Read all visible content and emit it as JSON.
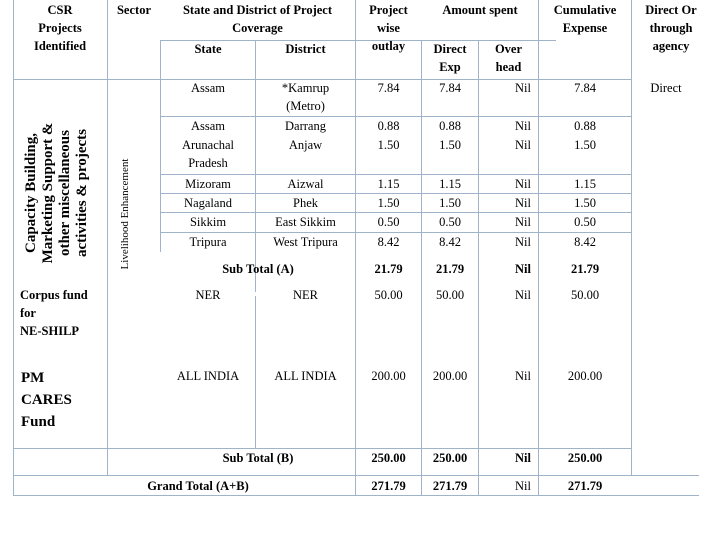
{
  "header": {
    "csr_projects": [
      "CSR",
      "Projects",
      "Identified"
    ],
    "sector": "Sector",
    "coverage": [
      "State and District of Project",
      "Coverage"
    ],
    "state": "State",
    "district": "District",
    "outlay": [
      "Project",
      "wise",
      "outlay"
    ],
    "amount_spent": "Amount spent",
    "direct_exp": [
      "Direct",
      "Exp"
    ],
    "overhead": [
      "Over",
      "head"
    ],
    "cumulative": [
      "Cumulative",
      "Expense"
    ],
    "direct_or_agency": [
      "Direct Or",
      "through",
      "agency"
    ]
  },
  "project_label": [
    "Capacity Building,",
    "Marketing Support &",
    "other miscellaneous",
    "activities & projects"
  ],
  "sector_label": "Livelihood Enhancement",
  "rows": [
    {
      "state": [
        "Assam"
      ],
      "district": [
        "*Kamrup",
        "(Metro)"
      ],
      "outlay": "7.84",
      "direct": "7.84",
      "overhead": "Nil",
      "cumulative": "7.84",
      "agency": "Direct"
    },
    {
      "state": [
        "Assam"
      ],
      "district": [
        "Darrang"
      ],
      "outlay": "0.88",
      "direct": "0.88",
      "overhead": "Nil",
      "cumulative": "0.88",
      "agency": ""
    },
    {
      "state": [
        "Arunachal",
        "Pradesh"
      ],
      "district": [
        "Anjaw"
      ],
      "outlay": "1.50",
      "direct": "1.50",
      "overhead": "Nil",
      "cumulative": "1.50",
      "agency": ""
    },
    {
      "state": [
        "Mizoram"
      ],
      "district": [
        "Aizwal"
      ],
      "outlay": "1.15",
      "direct": "1.15",
      "overhead": "Nil",
      "cumulative": "1.15",
      "agency": ""
    },
    {
      "state": [
        "Nagaland"
      ],
      "district": [
        "Phek"
      ],
      "outlay": "1.50",
      "direct": "1.50",
      "overhead": "Nil",
      "cumulative": "1.50",
      "agency": ""
    },
    {
      "state": [
        "Sikkim"
      ],
      "district": [
        "East Sikkim"
      ],
      "outlay": "0.50",
      "direct": "0.50",
      "overhead": "Nil",
      "cumulative": "0.50",
      "agency": ""
    },
    {
      "state": [
        "Tripura"
      ],
      "district": [
        "West Tripura"
      ],
      "outlay": "8.42",
      "direct": "8.42",
      "overhead": "Nil",
      "cumulative": "8.42",
      "agency": ""
    }
  ],
  "subtotal_a": {
    "label": "Sub Total (A)",
    "outlay": "21.79",
    "direct": "21.79",
    "overhead": "Nil",
    "cumulative": "21.79"
  },
  "corpus": {
    "label": [
      "Corpus fund",
      "for",
      "NE-SHILP"
    ],
    "state": "NER",
    "district": "NER",
    "outlay": "50.00",
    "direct": "50.00",
    "overhead": "Nil",
    "cumulative": "50.00"
  },
  "pmcares": {
    "label": [
      "PM",
      "CARES",
      "Fund"
    ],
    "state": "ALL INDIA",
    "district": "ALL INDIA",
    "outlay": "200.00",
    "direct": "200.00",
    "overhead": "Nil",
    "cumulative": "200.00"
  },
  "subtotal_b": {
    "label": "Sub Total (B)",
    "outlay": "250.00",
    "direct": "250.00",
    "overhead": "Nil",
    "cumulative": "250.00"
  },
  "grand_total": {
    "label": "Grand Total (A+B)",
    "outlay": "271.79",
    "direct": "271.79",
    "overhead": "Nil",
    "cumulative": "271.79"
  }
}
